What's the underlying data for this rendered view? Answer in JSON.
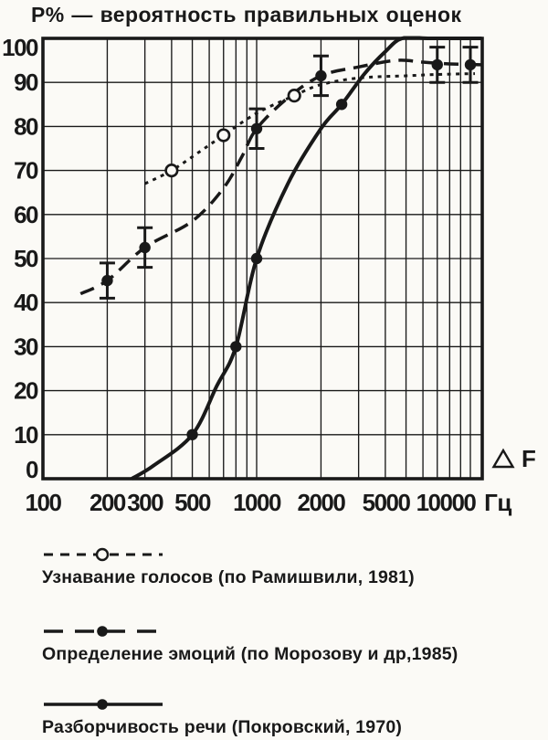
{
  "title": "Р% — вероятность правильных оценок",
  "colors": {
    "ink": "#191919",
    "paper": "#fbfaf6"
  },
  "axes": {
    "x_unit": "Гц",
    "x_annotation": "F",
    "x_annotation_marker": "triangle-icon",
    "x_tick_values": [
      100,
      200,
      300,
      500,
      1000,
      2000,
      5000,
      10000
    ],
    "x_tick_labels": [
      "100",
      "200",
      "300",
      "500",
      "1000",
      "2000",
      "5000",
      "10000"
    ],
    "y_tick_values": [
      0,
      10,
      20,
      30,
      40,
      50,
      60,
      70,
      80,
      90,
      100
    ],
    "y_tick_labels": [
      "0",
      "10",
      "20",
      "30",
      "40",
      "50",
      "60",
      "70",
      "80",
      "90",
      "100"
    ]
  },
  "chart_data": {
    "type": "line",
    "title": "Р% — вероятность правильных оценок",
    "xlabel": "Гц",
    "ylabel": "P%",
    "x_scale": "log",
    "xlim": [
      100,
      11300
    ],
    "ylim": [
      0,
      100
    ],
    "grid": true,
    "legend_position": "below",
    "x_gridlines": [
      200,
      300,
      400,
      500,
      600,
      700,
      800,
      900,
      1000,
      2000,
      3000,
      4000,
      5000,
      6000,
      7000,
      8000,
      9000,
      10000
    ],
    "y_gridlines": [
      10,
      20,
      30,
      40,
      50,
      60,
      70,
      80,
      90
    ],
    "series": [
      {
        "name": "Узнавание голосов (по Рамишвили, 1981)",
        "style": "dotted",
        "marker": "open-circle",
        "points": [
          [
            300,
            67
          ],
          [
            400,
            70
          ],
          [
            550,
            74.5
          ],
          [
            700,
            78
          ],
          [
            1000,
            83
          ],
          [
            1500,
            87
          ],
          [
            2000,
            89.5
          ],
          [
            3000,
            91
          ],
          [
            5000,
            91.5
          ],
          [
            7000,
            91.8
          ],
          [
            10500,
            92
          ]
        ],
        "marker_points": [
          [
            400,
            70
          ],
          [
            700,
            78
          ],
          [
            1500,
            87
          ]
        ]
      },
      {
        "name": "Определение эмоций (по Морозову и др,1985)",
        "style": "dashed",
        "marker": "filled-circle",
        "points": [
          [
            150,
            42
          ],
          [
            200,
            45
          ],
          [
            300,
            52.5
          ],
          [
            500,
            58.5
          ],
          [
            700,
            66
          ],
          [
            850,
            73
          ],
          [
            1000,
            79.5
          ],
          [
            1400,
            86.5
          ],
          [
            2000,
            91.5
          ],
          [
            3000,
            93.5
          ],
          [
            4500,
            95
          ],
          [
            6000,
            94.6
          ],
          [
            8000,
            94.2
          ],
          [
            11300,
            94
          ]
        ],
        "marker_points": [
          [
            200,
            45
          ],
          [
            300,
            52.5
          ],
          [
            1000,
            79.5
          ],
          [
            2000,
            91.5
          ],
          [
            7000,
            94
          ],
          [
            10000,
            94
          ]
        ],
        "error_bars": [
          [
            200,
            45,
            4
          ],
          [
            300,
            52.5,
            4.5
          ],
          [
            1000,
            79.5,
            4.5
          ],
          [
            2000,
            91.5,
            4.5
          ],
          [
            7000,
            94,
            4
          ],
          [
            10000,
            94,
            4
          ]
        ]
      },
      {
        "name": "Разборчивость речи (Покровский, 1970)",
        "style": "solid",
        "marker": "filled-circle",
        "points": [
          [
            260,
            0
          ],
          [
            330,
            3
          ],
          [
            500,
            10
          ],
          [
            650,
            21
          ],
          [
            800,
            30
          ],
          [
            1000,
            50
          ],
          [
            1400,
            67
          ],
          [
            2000,
            79.5
          ],
          [
            2500,
            85
          ],
          [
            3200,
            92
          ],
          [
            4000,
            97
          ],
          [
            4800,
            100
          ],
          [
            6500,
            100
          ],
          [
            11300,
            100
          ]
        ],
        "marker_points": [
          [
            500,
            10
          ],
          [
            800,
            30
          ],
          [
            1000,
            50
          ],
          [
            2500,
            85
          ]
        ]
      }
    ]
  },
  "legend": {
    "entries": [
      {
        "label": "Узнавание голосов  (по Рамишвили, 1981)",
        "line_style": "dotted",
        "marker": "open-circle"
      },
      {
        "label": "Определение эмоций (по Морозову и др,1985)",
        "line_style": "dashed",
        "marker": "filled-circle"
      },
      {
        "label": "Разборчивость речи  (Покровский, 1970)",
        "line_style": "solid",
        "marker": "filled-circle"
      }
    ]
  }
}
